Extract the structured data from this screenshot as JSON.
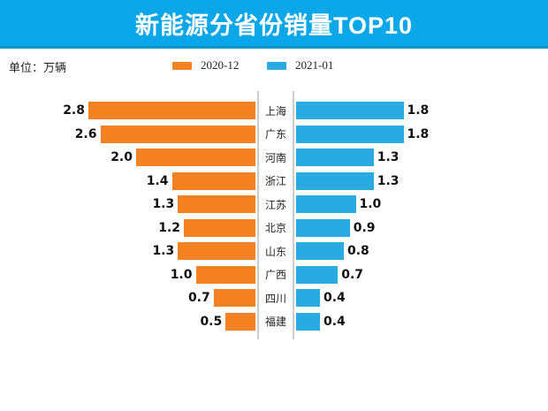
{
  "header": {
    "title": "新能源分省份销量TOP10",
    "banner_color": "#0BA7E8",
    "banner_border_color": "#0892CF"
  },
  "unit_label": "单位：万辆",
  "legend": {
    "items": [
      {
        "label": "2020-12",
        "color": "#F58220"
      },
      {
        "label": "2021-01",
        "color": "#29ABE2"
      }
    ]
  },
  "colors": {
    "orange": "#F58220",
    "blue": "#29ABE2",
    "axis_gray": "#CCCCCC",
    "title_text": "#FFFFFF",
    "value_text": "#111111"
  },
  "chart_data": {
    "type": "bar",
    "variant": "tornado",
    "title": "新能源分省份销量TOP10",
    "unit": "万辆",
    "categories": [
      "上海",
      "广东",
      "河南",
      "浙江",
      "江苏",
      "北京",
      "山东",
      "广西",
      "四川",
      "福建"
    ],
    "series": [
      {
        "name": "2020-12",
        "side": "left",
        "color": "#F58220",
        "values": [
          2.8,
          2.6,
          2.0,
          1.4,
          1.3,
          1.2,
          1.3,
          1.0,
          0.7,
          0.5
        ]
      },
      {
        "name": "2021-01",
        "side": "right",
        "color": "#29ABE2",
        "values": [
          1.8,
          1.8,
          1.3,
          1.3,
          1.0,
          0.9,
          0.8,
          0.7,
          0.4,
          0.4
        ]
      }
    ],
    "value_labels": true,
    "decimals": 1,
    "xlim": [
      0,
      3.0
    ],
    "grid": false,
    "legend_position": "top"
  }
}
